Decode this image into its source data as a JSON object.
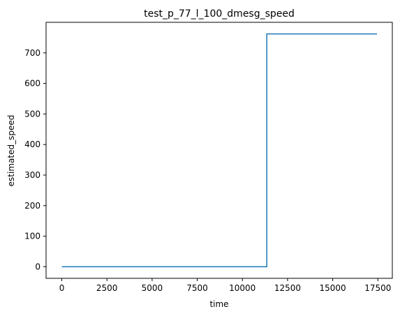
{
  "chart_data": {
    "type": "line",
    "title": "test_p_77_l_100_dmesg_speed",
    "xlabel": "time",
    "ylabel": "estimated_speed",
    "xlim": [
      -870,
      18300
    ],
    "ylim": [
      -38,
      800
    ],
    "xticks": [
      0,
      2500,
      5000,
      7500,
      10000,
      12500,
      15000,
      17500
    ],
    "xtick_labels": [
      "0",
      "2500",
      "5000",
      "7500",
      "10000",
      "12500",
      "15000",
      "17500"
    ],
    "yticks": [
      0,
      100,
      200,
      300,
      400,
      500,
      600,
      700
    ],
    "ytick_labels": [
      "0",
      "100",
      "200",
      "300",
      "400",
      "500",
      "600",
      "700"
    ],
    "grid": false,
    "series": [
      {
        "color": "#1f77b4",
        "x": [
          0,
          11350,
          11350,
          17450
        ],
        "y": [
          0,
          0,
          762,
          762
        ]
      }
    ]
  }
}
